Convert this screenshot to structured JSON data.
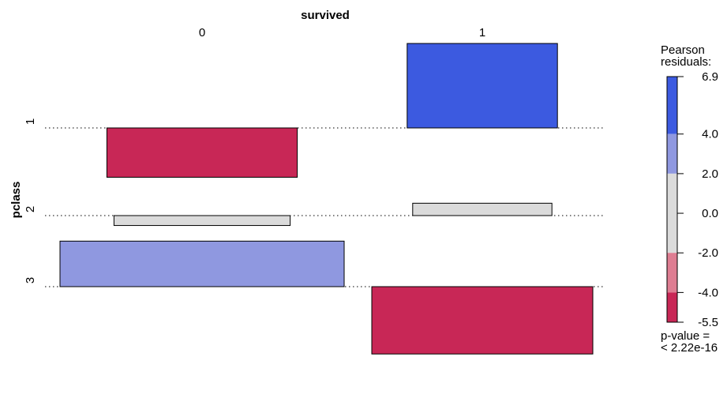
{
  "chart_data": {
    "type": "association plot",
    "title": "",
    "col_variable": "survived",
    "row_variable": "pclass",
    "columns": [
      "0",
      "1"
    ],
    "rows": [
      "1",
      "2",
      "3"
    ],
    "residuals": [
      [
        -4.03,
        6.9
      ],
      [
        -0.81,
        1.01
      ],
      [
        3.72,
        -5.5
      ]
    ],
    "legend": {
      "title_line1": "Pearson",
      "title_line2": "residuals:",
      "ticks": [
        "6.9",
        "4.0",
        "2.0",
        "0.0",
        "-2.0",
        "-4.0",
        "-5.5"
      ],
      "range": [
        -5.5,
        6.9
      ],
      "pvalue_line1": "p-value =",
      "pvalue_line2": "< 2.22e-16"
    },
    "colors": {
      "strong_positive": "#3c5ae0",
      "moderate_positive": "#8f98e0",
      "neutral": "#dbdbdb",
      "moderate_negative": "#de7d92",
      "strong_negative": "#c82756"
    }
  }
}
